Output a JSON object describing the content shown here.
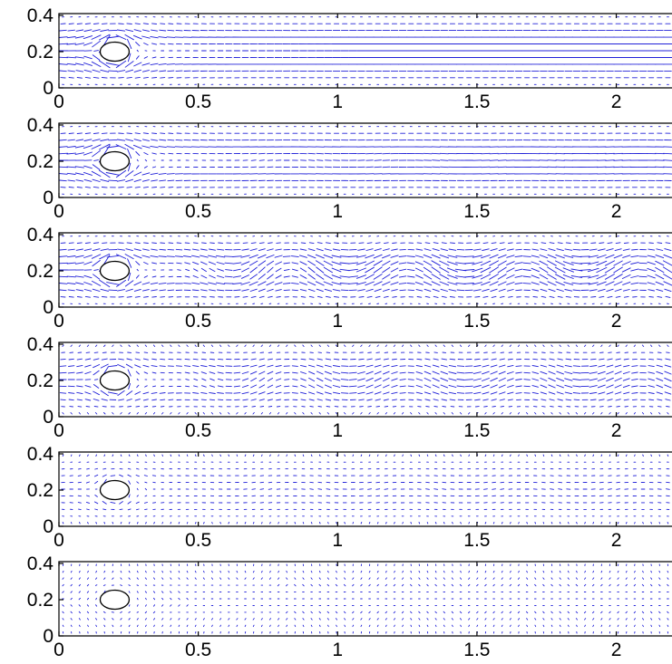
{
  "chart_data": [
    {
      "type": "quiver",
      "xlim": [
        0,
        2.2
      ],
      "ylim": [
        0,
        0.41
      ],
      "xticks": [
        "0",
        "0.5",
        "1",
        "1.5",
        "2"
      ],
      "yticks": [
        "0",
        "0.2",
        "0.4"
      ],
      "obstacle": {
        "shape": "circle",
        "center": [
          0.2,
          0.2
        ],
        "radius": 0.05
      },
      "arrow_color": "#2020d8",
      "flow": {
        "strength": 1.0,
        "near_wake_length": 0.6,
        "oscillation": 0.0
      }
    },
    {
      "type": "quiver",
      "xlim": [
        0,
        2.2
      ],
      "ylim": [
        0,
        0.41
      ],
      "xticks": [
        "0",
        "0.5",
        "1",
        "1.5",
        "2"
      ],
      "yticks": [
        "0",
        "0.2",
        "0.4"
      ],
      "obstacle": {
        "shape": "circle",
        "center": [
          0.2,
          0.2
        ],
        "radius": 0.05
      },
      "arrow_color": "#2020d8",
      "flow": {
        "strength": 1.0,
        "near_wake_length": 0.9,
        "oscillation": 0.05
      }
    },
    {
      "type": "quiver",
      "xlim": [
        0,
        2.2
      ],
      "ylim": [
        0,
        0.41
      ],
      "xticks": [
        "0",
        "0.5",
        "1",
        "1.5",
        "2"
      ],
      "yticks": [
        "0",
        "0.2",
        "0.4"
      ],
      "obstacle": {
        "shape": "circle",
        "center": [
          0.2,
          0.2
        ],
        "radius": 0.05
      },
      "arrow_color": "#2020d8",
      "flow": {
        "strength": 0.95,
        "near_wake_length": 0.5,
        "oscillation": 0.6
      }
    },
    {
      "type": "quiver",
      "xlim": [
        0,
        2.2
      ],
      "ylim": [
        0,
        0.41
      ],
      "xticks": [
        "0",
        "0.5",
        "1",
        "1.5",
        "2"
      ],
      "yticks": [
        "0",
        "0.2",
        "0.4"
      ],
      "obstacle": {
        "shape": "circle",
        "center": [
          0.2,
          0.2
        ],
        "radius": 0.05
      },
      "arrow_color": "#2020d8",
      "flow": {
        "strength": 0.7,
        "near_wake_length": 0.4,
        "oscillation": 0.45
      }
    },
    {
      "type": "quiver",
      "xlim": [
        0,
        2.2
      ],
      "ylim": [
        0,
        0.41
      ],
      "xticks": [
        "0",
        "0.5",
        "1",
        "1.5",
        "2"
      ],
      "yticks": [
        "0",
        "0.2",
        "0.4"
      ],
      "obstacle": {
        "shape": "circle",
        "center": [
          0.2,
          0.2
        ],
        "radius": 0.05
      },
      "arrow_color": "#2020d8",
      "flow": {
        "strength": 0.35,
        "near_wake_length": 0.2,
        "oscillation": 0.15
      }
    },
    {
      "type": "quiver",
      "xlim": [
        0,
        2.2
      ],
      "ylim": [
        0,
        0.41
      ],
      "xticks": [
        "0",
        "0.5",
        "1",
        "1.5",
        "2"
      ],
      "yticks": [
        "0",
        "0.2",
        "0.4"
      ],
      "obstacle": {
        "shape": "circle",
        "center": [
          0.2,
          0.2
        ],
        "radius": 0.05
      },
      "arrow_color": "#2020d8",
      "flow": {
        "strength": 0.15,
        "near_wake_length": 0.1,
        "oscillation": 0.05
      }
    }
  ]
}
